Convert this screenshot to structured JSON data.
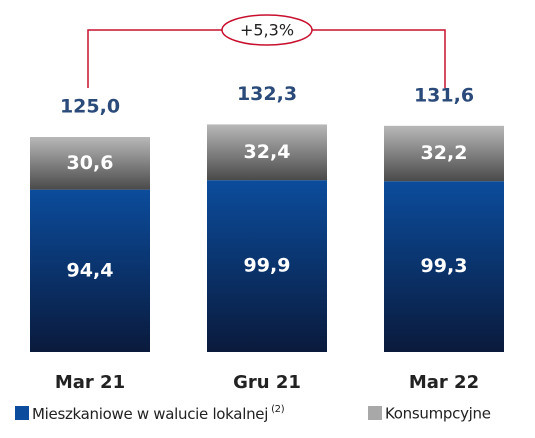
{
  "chart_data": {
    "type": "stacked_bar",
    "categories": [
      "Mar 21",
      "Gru 21",
      "Mar 22"
    ],
    "series": [
      {
        "name": "Mieszkaniowe w walucie lokalnej",
        "color": "#0b4c9c",
        "values": [
          94.4,
          99.9,
          99.3
        ],
        "value_labels": [
          "94,4",
          "99,9",
          "99,3"
        ]
      },
      {
        "name": "Konsumpcyjne",
        "color": "#a8a8a8",
        "values": [
          30.6,
          32.4,
          32.2
        ],
        "value_labels": [
          "30,6",
          "32,4",
          "32,2"
        ]
      }
    ],
    "legend_note": "(2)",
    "totals": [
      125.0,
      132.3,
      131.6
    ],
    "total_labels": [
      "125,0",
      "132,3",
      "131,6"
    ],
    "annotation": "+5,3%"
  }
}
